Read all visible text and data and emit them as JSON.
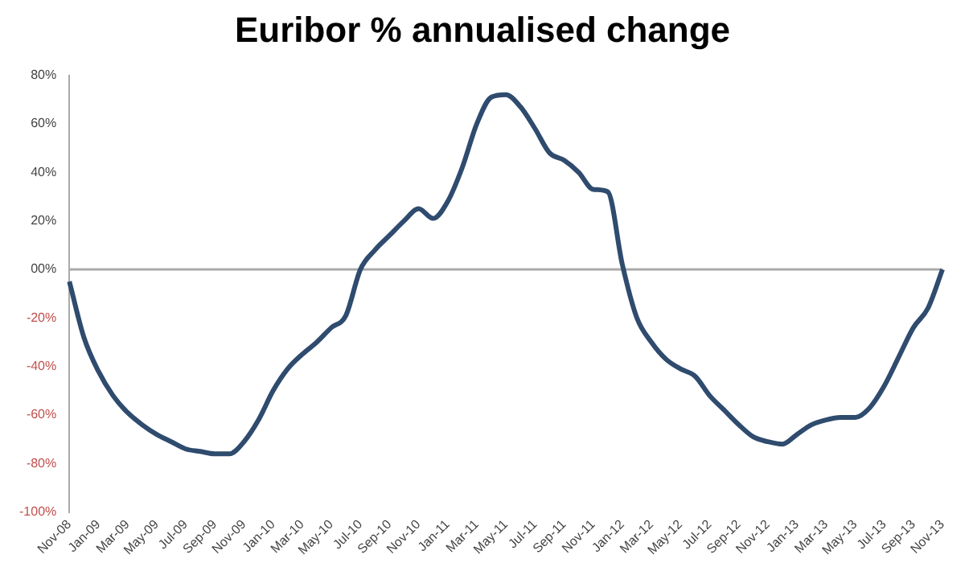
{
  "chart_data": {
    "type": "line",
    "title": "Euribor % annualised change",
    "categories": [
      "Nov-08",
      null,
      "Jan-09",
      null,
      "Mar-09",
      null,
      "May-09",
      null,
      "Jul-09",
      null,
      "Sep-09",
      null,
      "Nov-09",
      null,
      "Jan-10",
      null,
      "Mar-10",
      null,
      "May-10",
      null,
      "Jul-10",
      null,
      "Sep-10",
      null,
      "Nov-10",
      null,
      "Jan-11",
      null,
      "Mar-11",
      null,
      "May-11",
      null,
      "Jul-11",
      null,
      "Sep-11",
      null,
      "Nov-11",
      null,
      "Jan-12",
      null,
      "Mar-12",
      null,
      "May-12",
      null,
      "Jul-12",
      null,
      "Sep-12",
      null,
      "Nov-12",
      null,
      "Jan-13",
      null,
      "Mar-13",
      null,
      "May-13",
      null,
      "Jul-13",
      null,
      "Sep-13",
      null,
      "Nov-13"
    ],
    "series": [
      {
        "color": "#2f4b6e",
        "values": [
          -5,
          -28,
          -42,
          -52,
          -59,
          -64,
          -68,
          -71,
          -74,
          -75,
          -76,
          -76,
          -71,
          -62,
          -50,
          -41,
          -35,
          -30,
          -24,
          -19,
          0,
          8,
          14,
          20,
          25,
          21,
          28,
          42,
          60,
          71,
          72,
          67,
          58,
          48,
          45,
          40,
          33,
          32,
          2,
          -20,
          -30,
          -37,
          -41,
          -44,
          -52,
          -58,
          -64,
          -69,
          -71,
          -72,
          -68,
          -64,
          -62,
          -61,
          -61,
          -57,
          -48,
          -36,
          -24,
          -16,
          0
        ]
      }
    ],
    "ylim": [
      -100,
      80
    ],
    "yticks": [
      {
        "value": -100,
        "label": "-100%"
      },
      {
        "value": -80,
        "label": "-80%"
      },
      {
        "value": -60,
        "label": "-60%"
      },
      {
        "value": -40,
        "label": "-40%"
      },
      {
        "value": -20,
        "label": "-20%"
      },
      {
        "value": 0,
        "label": "00%"
      },
      {
        "value": 20,
        "label": "20%"
      },
      {
        "value": 40,
        "label": "40%"
      },
      {
        "value": 60,
        "label": "60%"
      },
      {
        "value": 80,
        "label": "80%"
      }
    ],
    "ref_lines": [
      {
        "axis": "y",
        "value": 0,
        "color": "#aaaaaa"
      }
    ],
    "grid": false,
    "legend": false,
    "marker": "none",
    "line_style": "solid"
  }
}
